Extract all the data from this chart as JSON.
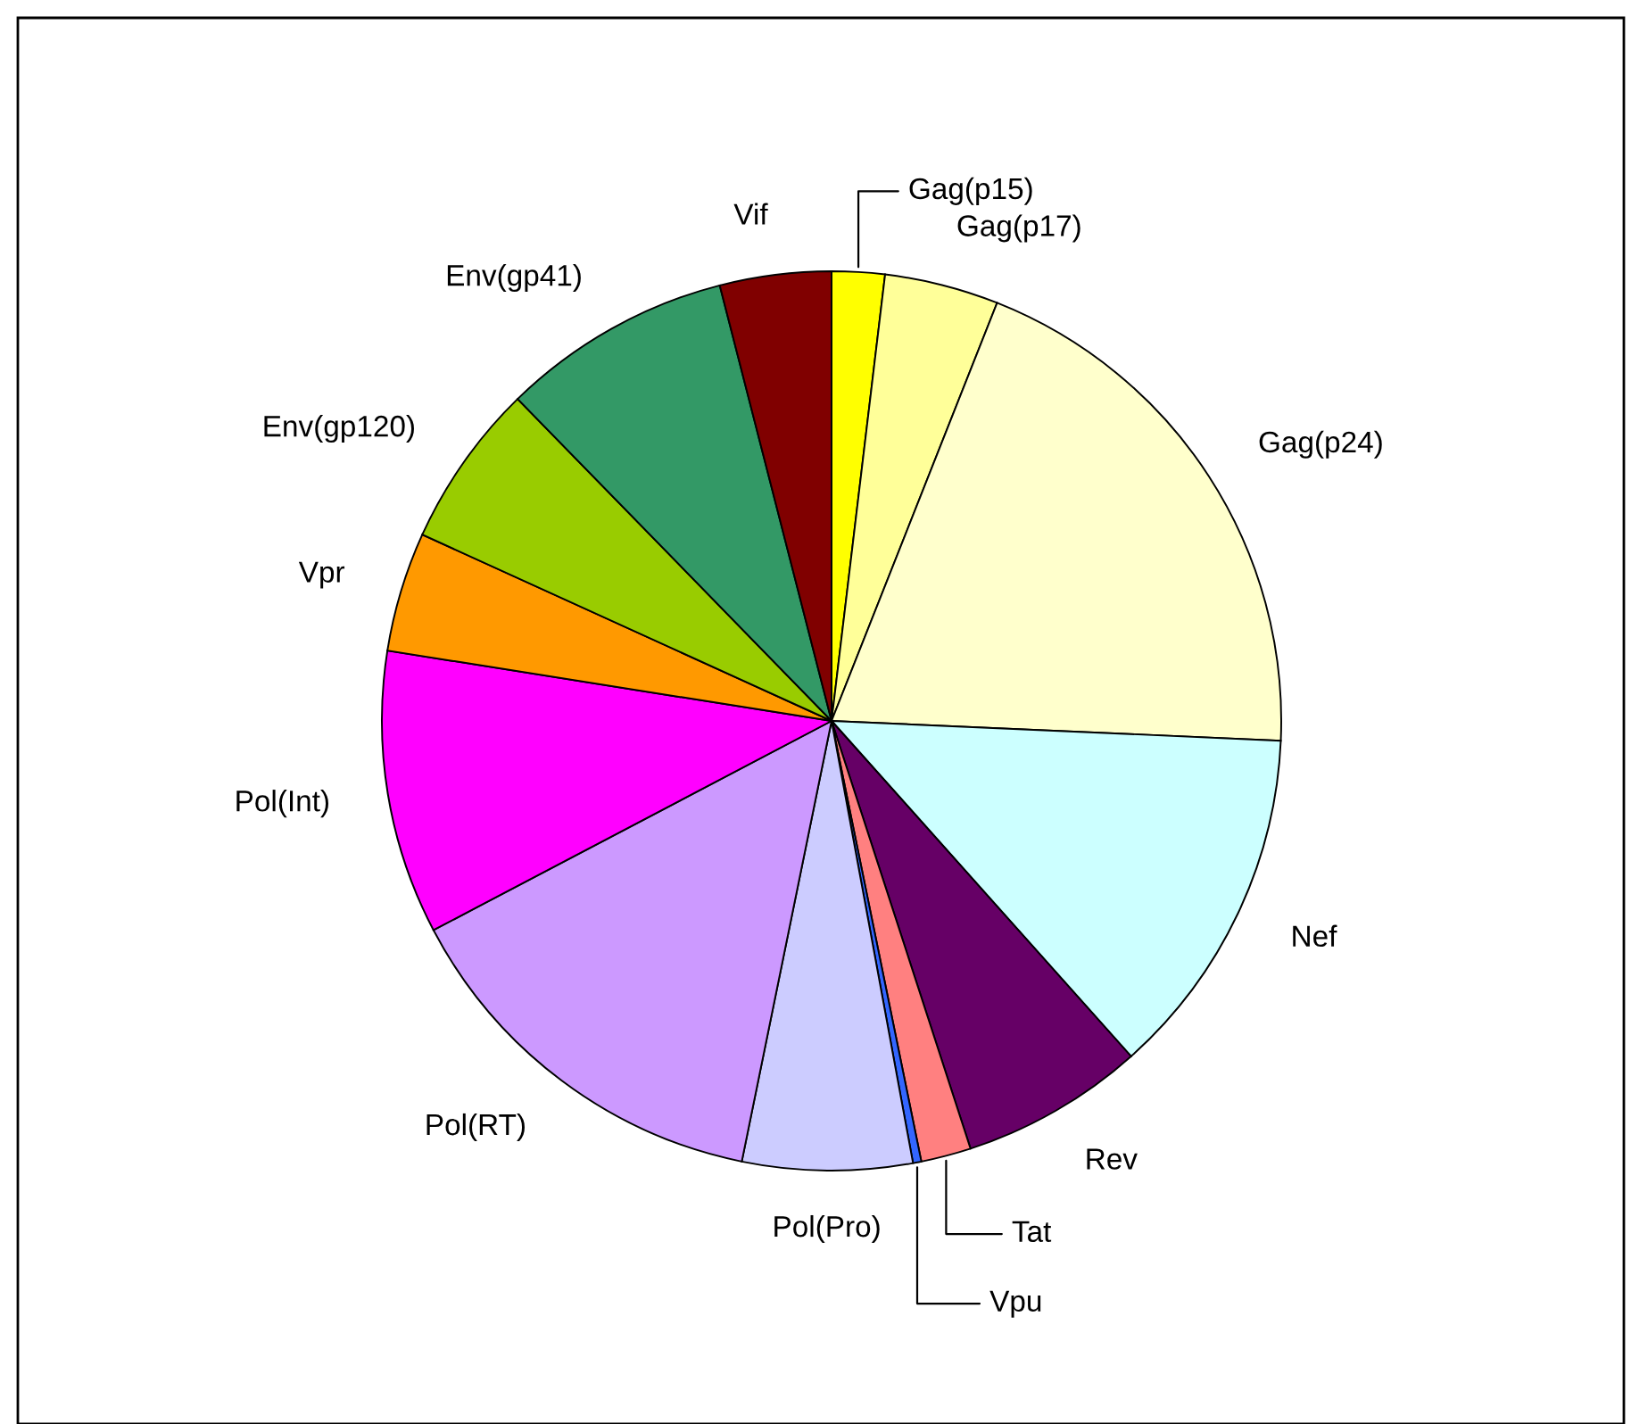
{
  "chart_data": {
    "type": "pie",
    "categories": [
      "Gag(p15)",
      "Gag(p17)",
      "Gag(p24)",
      "Nef",
      "Rev",
      "Tat",
      "Vpu",
      "Pol(Pro)",
      "Pol(RT)",
      "Pol(Int)",
      "Vpr",
      "Env(gp120)",
      "Env(gp41)",
      "Vif"
    ],
    "values": [
      1.9,
      4.1,
      19.7,
      12.7,
      6.6,
      1.8,
      0.3,
      6.1,
      14.1,
      10.2,
      4.3,
      5.9,
      8.3,
      4.0
    ],
    "colors": [
      "#ffff00",
      "#ffff99",
      "#ffffcc",
      "#ccffff",
      "#660066",
      "#ff8080",
      "#3366ff",
      "#ccccff",
      "#cc99ff",
      "#ff00ff",
      "#ff9900",
      "#99cc00",
      "#339966",
      "#800000"
    ]
  }
}
